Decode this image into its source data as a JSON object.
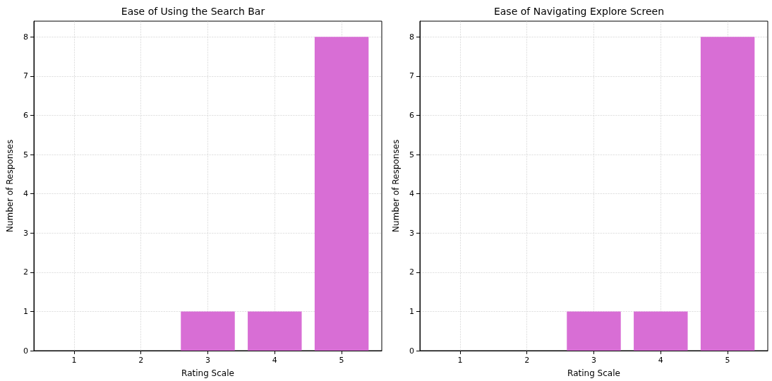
{
  "chart_data": [
    {
      "type": "bar",
      "title": "Ease of Using the Search Bar",
      "xlabel": "Rating Scale",
      "ylabel": "Number of Responses",
      "x": [
        1,
        2,
        3,
        4,
        5
      ],
      "values": [
        0,
        0,
        1,
        1,
        8
      ],
      "color": "#d86ed5",
      "xlim": [
        0.4,
        5.6
      ],
      "xticks": [
        1,
        2,
        3,
        4,
        5
      ],
      "ylim": [
        0,
        8.4
      ],
      "yticks": [
        0,
        1,
        2,
        3,
        4,
        5,
        6,
        7,
        8
      ],
      "grid": true
    },
    {
      "type": "bar",
      "title": "Ease of Navigating Explore Screen",
      "xlabel": "Rating Scale",
      "ylabel": "Number of Responses",
      "x": [
        1,
        2,
        3,
        4,
        5
      ],
      "values": [
        0,
        0,
        1,
        1,
        8
      ],
      "color": "#d86ed5",
      "xlim": [
        0.4,
        5.6
      ],
      "xticks": [
        1,
        2,
        3,
        4,
        5
      ],
      "ylim": [
        0,
        8.4
      ],
      "yticks": [
        0,
        1,
        2,
        3,
        4,
        5,
        6,
        7,
        8
      ],
      "grid": true
    }
  ]
}
